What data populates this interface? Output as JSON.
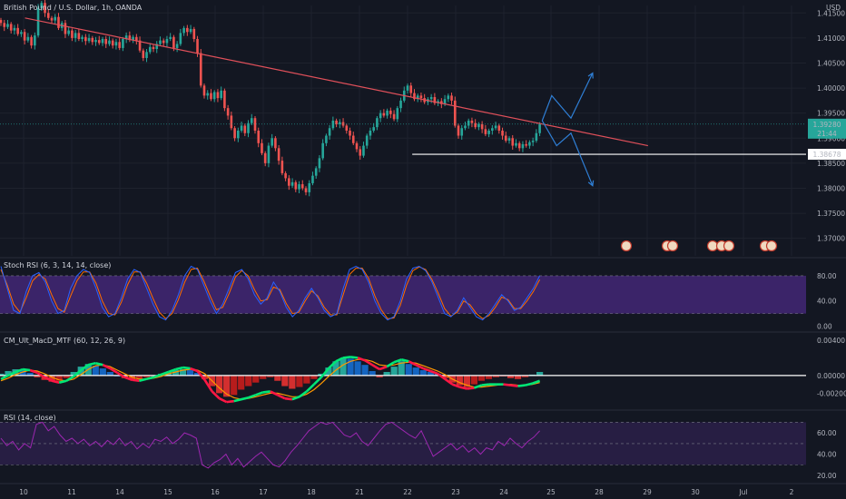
{
  "header": {
    "symbol": "British Pound / U.S. Dollar, 1h, OANDA",
    "currency": "USD"
  },
  "colors": {
    "bg": "#131722",
    "up": "#26a69a",
    "down": "#ef5350",
    "trend": "#e0505a",
    "support": "#ffffff",
    "projection": "#2f7fd6",
    "rsi_band": "#4a2a82",
    "rsi_line": "#9c27b0",
    "stoch_k": "#2962ff",
    "stoch_d": "#ff6d00"
  },
  "chart_data": [
    {
      "type": "candlestick",
      "title": "British Pound / U.S. Dollar, 1h, OANDA",
      "x_ticks": [
        "10",
        "11",
        "14",
        "15",
        "16",
        "17",
        "18",
        "21",
        "22",
        "23",
        "24",
        "25",
        "28",
        "29",
        "30",
        "Jul",
        "2"
      ],
      "y_ticks": [
        "1.41500",
        "1.41000",
        "1.40500",
        "1.40000",
        "1.39500",
        "1.39000",
        "1.38500",
        "1.38000",
        "1.37500",
        "1.37000"
      ],
      "ylim": [
        1.3665,
        1.4165
      ],
      "price_badge": {
        "value": "1.39280",
        "countdown": "21:44"
      },
      "support_badge": "1.38678",
      "support_level": 1.38678,
      "trendline": [
        {
          "bar": 0.5,
          "price": 1.414
        },
        {
          "bar": 13.45,
          "price": 1.3885
        }
      ],
      "projection_paths": [
        [
          {
            "bar": 11.25,
            "price": 1.3935
          },
          {
            "bar": 11.45,
            "price": 1.3985
          },
          {
            "bar": 11.85,
            "price": 1.394
          },
          {
            "bar": 12.3,
            "price": 1.403
          }
        ],
        [
          {
            "bar": 11.25,
            "price": 1.3935
          },
          {
            "bar": 11.55,
            "price": 1.3885
          },
          {
            "bar": 11.85,
            "price": 1.391
          },
          {
            "bar": 12.3,
            "price": 1.3805
          }
        ]
      ],
      "closes": [
        1.413,
        1.4122,
        1.4128,
        1.4115,
        1.412,
        1.4108,
        1.4112,
        1.4095,
        1.4102,
        1.4085,
        1.4105,
        1.416,
        1.417,
        1.415,
        1.414,
        1.4135,
        1.4142,
        1.412,
        1.413,
        1.4108,
        1.4115,
        1.41,
        1.411,
        1.4098,
        1.4102,
        1.4094,
        1.41,
        1.4092,
        1.4096,
        1.409,
        1.4098,
        1.4088,
        1.4095,
        1.4085,
        1.4092,
        1.408,
        1.4098,
        1.4105,
        1.4096,
        1.4102,
        1.4095,
        1.4075,
        1.406,
        1.4072,
        1.4082,
        1.4078,
        1.4088,
        1.4095,
        1.409,
        1.4098,
        1.4102,
        1.408,
        1.4088,
        1.411,
        1.412,
        1.4112,
        1.4118,
        1.4098,
        1.407,
        1.4005,
        1.3985,
        1.399,
        1.3978,
        1.3992,
        1.398,
        1.3995,
        1.396,
        1.3945,
        1.392,
        1.39,
        1.3915,
        1.3925,
        1.391,
        1.393,
        1.394,
        1.3915,
        1.389,
        1.387,
        1.385,
        1.3885,
        1.39,
        1.388,
        1.3855,
        1.383,
        1.382,
        1.3805,
        1.3812,
        1.3798,
        1.3808,
        1.38,
        1.3792,
        1.381,
        1.3825,
        1.384,
        1.386,
        1.389,
        1.3905,
        1.392,
        1.3935,
        1.3928,
        1.3932,
        1.3925,
        1.3915,
        1.3905,
        1.389,
        1.3878,
        1.3865,
        1.3885,
        1.3905,
        1.3915,
        1.3922,
        1.394,
        1.395,
        1.3945,
        1.3955,
        1.3948,
        1.3938,
        1.396,
        1.3975,
        1.3995,
        1.4005,
        1.399,
        1.3978,
        1.3985,
        1.398,
        1.3972,
        1.3978,
        1.3982,
        1.397,
        1.3974,
        1.3968,
        1.3978,
        1.3985,
        1.3975,
        1.3925,
        1.3905,
        1.392,
        1.3925,
        1.3935,
        1.393,
        1.3922,
        1.3928,
        1.3918,
        1.3908,
        1.3915,
        1.392,
        1.3925,
        1.3915,
        1.3905,
        1.3895,
        1.39,
        1.3885,
        1.389,
        1.388,
        1.3888,
        1.3885,
        1.3892,
        1.3895,
        1.391,
        1.3928
      ]
    },
    {
      "type": "line",
      "title": "Stoch RSI (6, 3, 14, 14, close)",
      "y_ticks": [
        "80.00",
        "40.00",
        "0.00"
      ],
      "ylim": [
        -5,
        100
      ],
      "band": [
        20,
        80
      ],
      "series": [
        {
          "name": "K",
          "values": [
            95,
            60,
            25,
            20,
            55,
            80,
            85,
            70,
            40,
            20,
            25,
            60,
            80,
            90,
            85,
            60,
            30,
            15,
            20,
            45,
            75,
            90,
            85,
            60,
            35,
            15,
            10,
            25,
            50,
            80,
            95,
            90,
            65,
            40,
            20,
            35,
            60,
            85,
            90,
            75,
            50,
            35,
            45,
            70,
            55,
            30,
            15,
            25,
            45,
            60,
            45,
            25,
            15,
            20,
            60,
            90,
            95,
            90,
            70,
            40,
            20,
            10,
            15,
            40,
            75,
            92,
            95,
            88,
            70,
            45,
            20,
            15,
            25,
            45,
            30,
            15,
            10,
            20,
            35,
            50,
            40,
            25,
            30,
            45,
            60,
            80
          ]
        },
        {
          "name": "D",
          "values": [
            90,
            65,
            35,
            22,
            45,
            72,
            82,
            75,
            50,
            28,
            22,
            48,
            72,
            86,
            86,
            68,
            40,
            20,
            18,
            38,
            66,
            86,
            86,
            68,
            44,
            22,
            12,
            20,
            42,
            70,
            90,
            92,
            72,
            48,
            26,
            30,
            52,
            78,
            88,
            80,
            58,
            40,
            42,
            62,
            58,
            36,
            20,
            22,
            40,
            56,
            48,
            30,
            18,
            18,
            50,
            82,
            92,
            92,
            76,
            48,
            26,
            12,
            13,
            33,
            65,
            88,
            94,
            90,
            74,
            52,
            28,
            16,
            22,
            40,
            34,
            20,
            12,
            17,
            30,
            46,
            42,
            28,
            28,
            40,
            55,
            74
          ]
        }
      ]
    },
    {
      "type": "bar",
      "title": "CM_Ult_MacD_MTF (60, 12, 26, 9)",
      "y_ticks": [
        "0.00400",
        "0.00000",
        "-0.00200"
      ],
      "ylim": [
        -0.0035,
        0.0045
      ],
      "histogram": [
        0.0002,
        0.0005,
        0.0007,
        0.0006,
        0.0003,
        -0.0002,
        -0.0005,
        -0.0007,
        -0.0006,
        -0.0003,
        0.0004,
        0.001,
        0.0013,
        0.0011,
        0.0008,
        0.0004,
        0.0,
        -0.0003,
        -0.0005,
        -0.0004,
        -0.0002,
        -0.0001,
        0.0002,
        0.0004,
        0.0006,
        0.0007,
        0.0006,
        0.0003,
        -0.0004,
        -0.0012,
        -0.002,
        -0.0024,
        -0.0022,
        -0.0016,
        -0.0012,
        -0.0008,
        -0.0004,
        -0.0002,
        -0.0006,
        -0.0012,
        -0.0015,
        -0.0013,
        -0.0009,
        -0.0004,
        0.0002,
        0.0009,
        0.0016,
        0.002,
        0.0019,
        0.0016,
        0.0012,
        0.0005,
        -0.0002,
        0.0004,
        0.001,
        0.0016,
        0.0013,
        0.0009,
        0.0006,
        0.0004,
        0.0002,
        -0.0003,
        -0.0008,
        -0.0011,
        -0.0013,
        -0.001,
        -0.0006,
        -0.0004,
        -0.0002,
        -0.0001,
        -0.0003,
        -0.0004,
        -0.0002,
        0.0001,
        0.0004
      ],
      "series": [
        {
          "name": "MACD",
          "values": [
            -0.0004,
            0.0,
            0.0004,
            0.0007,
            0.0006,
            0.0003,
            -0.0002,
            -0.0006,
            -0.0008,
            -0.0006,
            -0.0001,
            0.0006,
            0.0012,
            0.0014,
            0.0012,
            0.0008,
            0.0003,
            -0.0002,
            -0.0005,
            -0.0006,
            -0.0004,
            -0.0002,
            0.0001,
            0.0004,
            0.0007,
            0.0009,
            0.0008,
            0.0005,
            -0.0005,
            -0.0018,
            -0.0026,
            -0.003,
            -0.0029,
            -0.0027,
            -0.0025,
            -0.0022,
            -0.0019,
            -0.0018,
            -0.0022,
            -0.0026,
            -0.0027,
            -0.0024,
            -0.0018,
            -0.001,
            -0.0002,
            0.0008,
            0.0016,
            0.002,
            0.0021,
            0.002,
            0.0017,
            0.0012,
            0.0007,
            0.001,
            0.0015,
            0.0018,
            0.0016,
            0.0012,
            0.0008,
            0.0005,
            0.0002,
            -0.0004,
            -0.001,
            -0.0013,
            -0.0015,
            -0.0014,
            -0.0011,
            -0.001,
            -0.001,
            -0.001,
            -0.0011,
            -0.0012,
            -0.0011,
            -0.0009,
            -0.0006
          ]
        },
        {
          "name": "Signal",
          "values": [
            -0.0006,
            -0.0003,
            0.0001,
            0.0004,
            0.0006,
            0.0005,
            0.0002,
            -0.0002,
            -0.0005,
            -0.0006,
            -0.0004,
            0.0001,
            0.0007,
            0.0011,
            0.0012,
            0.001,
            0.0006,
            0.0002,
            -0.0002,
            -0.0004,
            -0.0004,
            -0.0003,
            -0.0001,
            0.0002,
            0.0004,
            0.0006,
            0.0007,
            0.0006,
            0.0002,
            -0.0006,
            -0.0014,
            -0.0021,
            -0.0025,
            -0.0027,
            -0.0026,
            -0.0024,
            -0.0022,
            -0.002,
            -0.002,
            -0.0022,
            -0.0024,
            -0.0024,
            -0.0021,
            -0.0016,
            -0.0009,
            -0.0001,
            0.0006,
            0.0012,
            0.0016,
            0.0018,
            0.0018,
            0.0016,
            0.0012,
            0.0011,
            0.0012,
            0.0014,
            0.0015,
            0.0014,
            0.0011,
            0.0008,
            0.0005,
            0.0001,
            -0.0004,
            -0.0008,
            -0.0011,
            -0.0013,
            -0.0013,
            -0.0012,
            -0.0011,
            -0.001,
            -0.001,
            -0.0011,
            -0.0011,
            -0.001,
            -0.0008
          ]
        }
      ]
    },
    {
      "type": "line",
      "title": "RSI (14, close)",
      "y_ticks": [
        "60.00",
        "40.00",
        "20.00"
      ],
      "ylim": [
        15,
        78
      ],
      "band": [
        30,
        70
      ],
      "mid": 50,
      "series": [
        {
          "name": "RSI",
          "values": [
            55,
            48,
            52,
            44,
            50,
            46,
            68,
            70,
            62,
            66,
            58,
            52,
            55,
            50,
            54,
            48,
            52,
            47,
            53,
            49,
            55,
            48,
            52,
            45,
            50,
            46,
            54,
            52,
            56,
            50,
            54,
            60,
            58,
            55,
            30,
            27,
            32,
            35,
            40,
            30,
            36,
            28,
            33,
            38,
            42,
            36,
            30,
            28,
            34,
            42,
            48,
            55,
            62,
            66,
            70,
            68,
            70,
            64,
            58,
            56,
            60,
            52,
            48,
            55,
            62,
            68,
            70,
            66,
            62,
            58,
            55,
            62,
            50,
            38,
            42,
            46,
            50,
            44,
            48,
            42,
            46,
            40,
            46,
            44,
            52,
            48,
            55,
            50,
            46,
            52,
            56,
            62
          ]
        }
      ]
    }
  ]
}
